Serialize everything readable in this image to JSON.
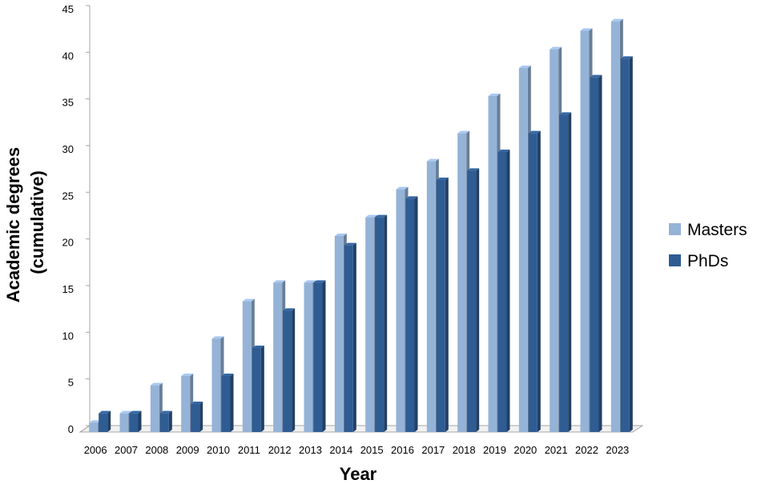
{
  "chart_data": {
    "type": "bar",
    "title": "",
    "xlabel": "Year",
    "ylabel_lines": [
      "Academic degrees",
      "(cumulative)"
    ],
    "categories": [
      "2006",
      "2007",
      "2008",
      "2009",
      "2010",
      "2011",
      "2012",
      "2013",
      "2014",
      "2015",
      "2016",
      "2017",
      "2018",
      "2019",
      "2020",
      "2021",
      "2022",
      "2023"
    ],
    "series": [
      {
        "name": "Masters",
        "color": "#95B3D7",
        "values": [
          1,
          2,
          5,
          6,
          10,
          14,
          16,
          16,
          21,
          23,
          26,
          29,
          32,
          36,
          39,
          41,
          43,
          44
        ]
      },
      {
        "name": "PhDs",
        "color": "#2F5C92",
        "values": [
          2,
          2,
          2,
          3,
          6,
          9,
          13,
          16,
          20,
          23,
          25,
          27,
          28,
          30,
          32,
          34,
          38,
          40
        ]
      }
    ],
    "ylim": [
      0,
      45
    ],
    "yticks": [
      0,
      5,
      10,
      15,
      20,
      25,
      30,
      35,
      40,
      45
    ],
    "legend_position": "right",
    "style": "3d-clustered-column",
    "grid": false
  }
}
